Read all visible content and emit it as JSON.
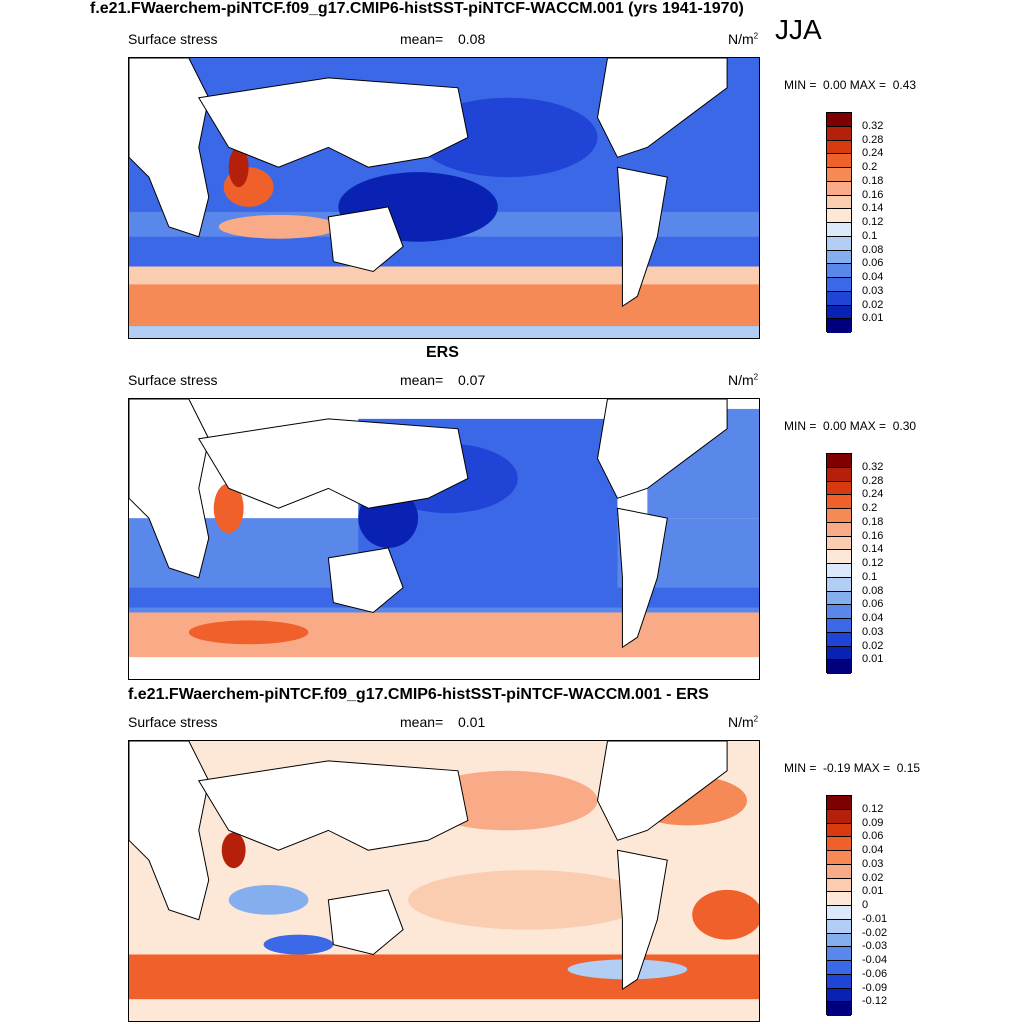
{
  "title": "f.e21.FWaerchem-piNTCF.f09_g17.CMIP6-histSST-piNTCF-WACCM.001 (yrs 1941-1970)",
  "season": "JJA",
  "panels": [
    {
      "title": "",
      "variable": "Surface stress",
      "mean_label": "mean=",
      "mean": "0.08",
      "units": "N/m",
      "units_exp": "2",
      "min_label": "MIN =",
      "min": "0.00",
      "max_label": "MAX =",
      "max": "0.43",
      "levels": [
        "0.32",
        "0.28",
        "0.24",
        "0.2",
        "0.18",
        "0.16",
        "0.14",
        "0.12",
        "0.1",
        "0.08",
        "0.06",
        "0.04",
        "0.03",
        "0.02",
        "0.01"
      ],
      "colors": [
        "#7f0000",
        "#b5200a",
        "#d9390e",
        "#f0602a",
        "#f58a56",
        "#f8ab86",
        "#fbcdb0",
        "#fde8d8",
        "#dbe9fb",
        "#b2cef4",
        "#85aeef",
        "#5a87ea",
        "#3b68e6",
        "#1f44d6",
        "#0a22b4",
        "#00007e"
      ]
    },
    {
      "title": "ERS",
      "variable": "Surface stress",
      "mean_label": "mean=",
      "mean": "0.07",
      "units": "N/m",
      "units_exp": "2",
      "min_label": "MIN =",
      "min": "0.00",
      "max_label": "MAX =",
      "max": "0.30",
      "levels": [
        "0.32",
        "0.28",
        "0.24",
        "0.2",
        "0.18",
        "0.16",
        "0.14",
        "0.12",
        "0.1",
        "0.08",
        "0.06",
        "0.04",
        "0.03",
        "0.02",
        "0.01"
      ],
      "colors": [
        "#7f0000",
        "#b5200a",
        "#d9390e",
        "#f0602a",
        "#f58a56",
        "#f8ab86",
        "#fbcdb0",
        "#fde8d8",
        "#dbe9fb",
        "#b2cef4",
        "#85aeef",
        "#5a87ea",
        "#3b68e6",
        "#1f44d6",
        "#0a22b4",
        "#00007e"
      ]
    },
    {
      "title": "f.e21.FWaerchem-piNTCF.f09_g17.CMIP6-histSST-piNTCF-WACCM.001 - ERS",
      "variable": "Surface stress",
      "mean_label": "mean=",
      "mean": "0.01",
      "units": "N/m",
      "units_exp": "2",
      "min_label": "MIN =",
      "min": "-0.19",
      "max_label": "MAX =",
      "max": "0.15",
      "levels": [
        "0.12",
        "0.09",
        "0.06",
        "0.04",
        "0.03",
        "0.02",
        "0.01",
        "0",
        "-0.01",
        "-0.02",
        "-0.03",
        "-0.04",
        "-0.06",
        "-0.09",
        "-0.12"
      ],
      "colors": [
        "#7f0000",
        "#b5200a",
        "#d9390e",
        "#f0602a",
        "#f58a56",
        "#f8ab86",
        "#fbcdb0",
        "#fde8d8",
        "#dbe9fb",
        "#b2cef4",
        "#85aeef",
        "#5a87ea",
        "#3b68e6",
        "#1f44d6",
        "#0a22b4",
        "#00007e"
      ]
    }
  ]
}
